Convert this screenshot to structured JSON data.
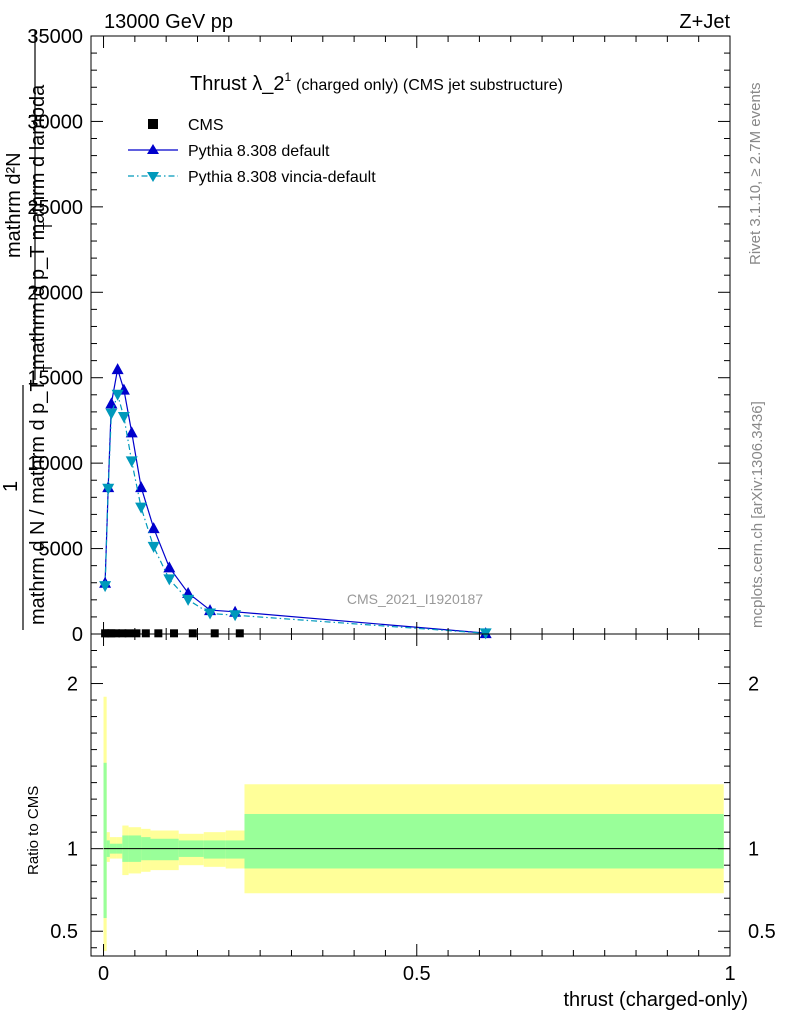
{
  "header": {
    "energy_label": "13000 GeV pp",
    "process_label": "Z+Jet",
    "side_label_rivet": "Rivet 3.1.10, ≥ 2.7M events",
    "side_label_mcplots": "mcplots.cern.ch [arXiv:1306.3436]",
    "watermark": "CMS_2021_I1920187"
  },
  "chart_data": {
    "type": "line",
    "title_main": "Thrust λ_2",
    "title_sup": "1",
    "title_sub": "(charged only) (CMS jet substructure)",
    "xlabel": "thrust (charged-only)",
    "ylabel_upper_num": "mathrm d²N",
    "ylabel_upper_den": "mathrm d p_T mathrm d lambda",
    "ylabel_upper_sub": "T",
    "ylabel_lower_num": "1",
    "ylabel_lower_den": "mathrm d N / mathrm d p_T",
    "ylabel_lower_sub": "T",
    "ratio_ylabel": "Ratio to CMS",
    "xlim": [
      -0.02,
      1.0
    ],
    "ylim": [
      0,
      35000
    ],
    "ratio_ylim": [
      0.35,
      2.3
    ],
    "x_ticks": [
      {
        "v": 0,
        "label": "0"
      },
      {
        "v": 0.5,
        "label": "0.5"
      },
      {
        "v": 1,
        "label": "1"
      }
    ],
    "y_ticks": [
      {
        "v": 0,
        "label": "0"
      },
      {
        "v": 5000,
        "label": "5000"
      },
      {
        "v": 10000,
        "label": "10000"
      },
      {
        "v": 15000,
        "label": "15000"
      },
      {
        "v": 20000,
        "label": "20000"
      },
      {
        "v": 25000,
        "label": "25000"
      },
      {
        "v": 30000,
        "label": "30000"
      },
      {
        "v": 35000,
        "label": "35000"
      }
    ],
    "ratio_ticks": [
      {
        "v": 0.5,
        "label": "0.5"
      },
      {
        "v": 1,
        "label": "1"
      },
      {
        "v": 2,
        "label": "2"
      }
    ],
    "legend_position": "top-left",
    "series": [
      {
        "name": "CMS",
        "color": "#000000",
        "marker": "square",
        "x": [
          0.0025,
          0.0075,
          0.0125,
          0.02,
          0.03,
          0.04,
          0.0525,
          0.0675,
          0.0875,
          0.1125,
          0.1425,
          0.1775,
          0.2175
        ],
        "y": [
          40,
          40,
          40,
          40,
          40,
          40,
          40,
          40,
          40,
          40,
          40,
          40,
          40
        ]
      },
      {
        "name": "Pythia 8.308 default",
        "color": "#0000cc",
        "marker": "triangle-up",
        "x": [
          0.0025,
          0.0075,
          0.0125,
          0.0225,
          0.0325,
          0.045,
          0.06,
          0.08,
          0.105,
          0.135,
          0.17,
          0.21,
          0.61
        ],
        "y": [
          3000,
          8600,
          13500,
          15500,
          14300,
          11800,
          8600,
          6200,
          3900,
          2400,
          1400,
          1300,
          50
        ]
      },
      {
        "name": "Pythia 8.308 vincia-default",
        "color": "#0099bb",
        "marker": "triangle-down",
        "x": [
          0.0025,
          0.0075,
          0.0125,
          0.0225,
          0.0325,
          0.045,
          0.06,
          0.08,
          0.105,
          0.135,
          0.17,
          0.21,
          0.61
        ],
        "y": [
          2800,
          8500,
          12900,
          14000,
          12700,
          10100,
          7400,
          5100,
          3200,
          2000,
          1200,
          1100,
          40
        ]
      }
    ],
    "ratio_bands": {
      "yellow_color": "#ffff99",
      "green_color": "#99ff99",
      "bins": [
        {
          "x0": 0.0,
          "x1": 0.005,
          "y_lo": 0.38,
          "y_hi": 1.92,
          "g_lo": 0.58,
          "g_hi": 1.52
        },
        {
          "x0": 0.005,
          "x1": 0.01,
          "y_lo": 0.92,
          "y_hi": 1.1,
          "g_lo": 0.95,
          "g_hi": 1.05
        },
        {
          "x0": 0.01,
          "x1": 0.02,
          "y_lo": 0.94,
          "y_hi": 1.07,
          "g_lo": 0.97,
          "g_hi": 1.03
        },
        {
          "x0": 0.02,
          "x1": 0.03,
          "y_lo": 0.94,
          "y_hi": 1.07,
          "g_lo": 0.97,
          "g_hi": 1.03
        },
        {
          "x0": 0.03,
          "x1": 0.04,
          "y_lo": 0.84,
          "y_hi": 1.14,
          "g_lo": 0.92,
          "g_hi": 1.08
        },
        {
          "x0": 0.04,
          "x1": 0.06,
          "y_lo": 0.85,
          "y_hi": 1.13,
          "g_lo": 0.92,
          "g_hi": 1.08
        },
        {
          "x0": 0.06,
          "x1": 0.075,
          "y_lo": 0.86,
          "y_hi": 1.12,
          "g_lo": 0.93,
          "g_hi": 1.07
        },
        {
          "x0": 0.075,
          "x1": 0.12,
          "y_lo": 0.87,
          "y_hi": 1.11,
          "g_lo": 0.93,
          "g_hi": 1.06
        },
        {
          "x0": 0.12,
          "x1": 0.16,
          "y_lo": 0.9,
          "y_hi": 1.09,
          "g_lo": 0.95,
          "g_hi": 1.05
        },
        {
          "x0": 0.16,
          "x1": 0.195,
          "y_lo": 0.89,
          "y_hi": 1.1,
          "g_lo": 0.94,
          "g_hi": 1.05
        },
        {
          "x0": 0.195,
          "x1": 0.225,
          "y_lo": 0.88,
          "y_hi": 1.11,
          "g_lo": 0.94,
          "g_hi": 1.05
        },
        {
          "x0": 0.225,
          "x1": 0.99,
          "y_lo": 0.73,
          "y_hi": 1.39,
          "g_lo": 0.88,
          "g_hi": 1.21
        }
      ]
    }
  }
}
